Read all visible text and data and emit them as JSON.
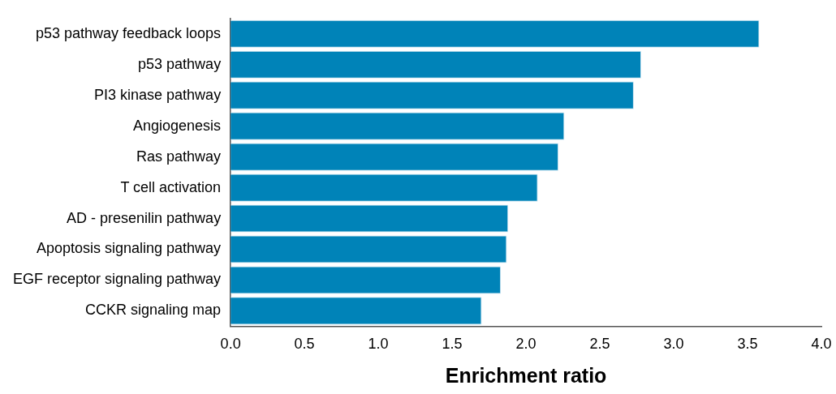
{
  "chart_data": {
    "type": "bar",
    "orientation": "horizontal",
    "xlabel": "Enrichment ratio",
    "categories": [
      "p53 pathway feedback loops",
      "p53 pathway",
      "PI3 kinase pathway",
      "Angiogenesis",
      "Ras pathway",
      "T cell activation",
      "AD - presenilin pathway",
      "Apoptosis signaling pathway",
      "EGF receptor signaling pathway",
      "CCKR signaling map"
    ],
    "values": [
      3.58,
      2.78,
      2.73,
      2.26,
      2.22,
      2.08,
      1.88,
      1.87,
      1.83,
      1.7
    ],
    "color": "#0083b8",
    "xlim": [
      0,
      4
    ],
    "xticks": [
      {
        "value": 0,
        "label": "0.0"
      },
      {
        "value": 0.5,
        "label": "0.5"
      },
      {
        "value": 1,
        "label": "1.0"
      },
      {
        "value": 1.5,
        "label": "1.5"
      },
      {
        "value": 2,
        "label": "2.0"
      },
      {
        "value": 2.5,
        "label": "2.5"
      },
      {
        "value": 3,
        "label": "3.0"
      },
      {
        "value": 3.5,
        "label": "3.5"
      },
      {
        "value": 4,
        "label": "4.0"
      }
    ],
    "grid": false,
    "legend": false
  }
}
